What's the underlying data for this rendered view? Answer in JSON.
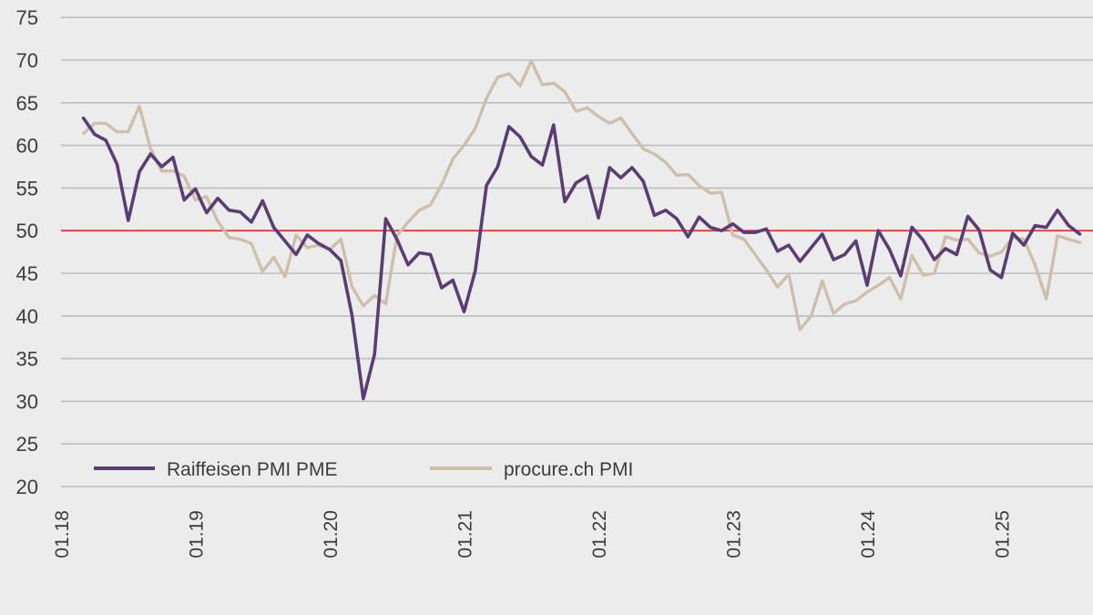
{
  "chart_data": {
    "type": "line",
    "y_ticks": [
      "20",
      "25",
      "30",
      "35",
      "40",
      "45",
      "50",
      "55",
      "60",
      "65",
      "70",
      "75"
    ],
    "x_ticks": [
      "01.18",
      "01.19",
      "01.20",
      "01.21",
      "01.22",
      "01.23",
      "01.24",
      "01.25"
    ],
    "ylim": [
      20,
      75
    ],
    "grid": true,
    "legend_position": "bottom-left",
    "reference_line": {
      "value": 50,
      "color": "#e8393c"
    },
    "series": [
      {
        "name": "Raiffeisen PMI PME",
        "color": "#5a3e73",
        "start": "2018-03",
        "values": [
          63.2,
          61.3,
          60.6,
          57.8,
          51.2,
          56.9,
          59.0,
          57.5,
          58.6,
          53.6,
          54.9,
          52.1,
          53.8,
          52.4,
          52.2,
          51.0,
          53.5,
          50.4,
          48.8,
          47.2,
          49.5,
          48.5,
          47.8,
          46.5,
          40.0,
          30.3,
          35.5,
          51.4,
          49.0,
          46.0,
          47.4,
          47.2,
          43.3,
          44.2,
          40.5,
          45.3,
          55.3,
          57.5,
          62.2,
          61.0,
          58.7,
          57.7,
          62.4,
          53.4,
          55.6,
          56.4,
          51.5,
          57.4,
          56.2,
          57.4,
          55.8,
          51.8,
          52.4,
          51.4,
          49.3,
          51.6,
          50.4,
          50.0,
          50.8,
          49.8,
          49.8,
          50.2,
          47.6,
          48.3,
          46.4,
          48.0,
          49.6,
          46.6,
          47.2,
          48.8,
          43.6,
          50.0,
          47.8,
          44.7,
          50.4,
          48.9,
          46.6,
          47.9,
          47.2,
          51.7,
          50.1,
          45.4,
          44.5,
          49.7,
          48.3,
          50.6,
          50.4,
          52.4,
          50.6,
          49.6
        ]
      },
      {
        "name": "procure.ch PMI",
        "color": "#cdbfaa",
        "start": "2018-03",
        "values": [
          61.4,
          62.6,
          62.6,
          61.6,
          61.6,
          64.6,
          59.6,
          57.0,
          57.0,
          56.4,
          53.6,
          54.0,
          51.1,
          49.2,
          49.0,
          48.5,
          45.2,
          46.9,
          44.6,
          49.5,
          48.0,
          48.3,
          47.8,
          49.0,
          43.4,
          41.2,
          42.4,
          41.4,
          49.4,
          51.0,
          52.4,
          53.0,
          55.4,
          58.4,
          60.0,
          62.0,
          65.5,
          68.0,
          68.4,
          67.0,
          69.9,
          67.1,
          67.3,
          66.3,
          64.0,
          64.4,
          63.4,
          62.6,
          63.2,
          61.4,
          59.6,
          59.0,
          58.0,
          56.5,
          56.6,
          55.3,
          54.4,
          54.5,
          49.5,
          49.0,
          47.2,
          45.4,
          43.4,
          44.9,
          38.4,
          40.0,
          44.1,
          40.3,
          41.4,
          41.8,
          42.8,
          43.6,
          44.5,
          42.0,
          47.1,
          44.8,
          45.0,
          49.3,
          48.9,
          49.0,
          47.4,
          47.0,
          47.5,
          49.2,
          49.0,
          46.0,
          42.0,
          49.4,
          49.0,
          48.6
        ]
      }
    ]
  }
}
